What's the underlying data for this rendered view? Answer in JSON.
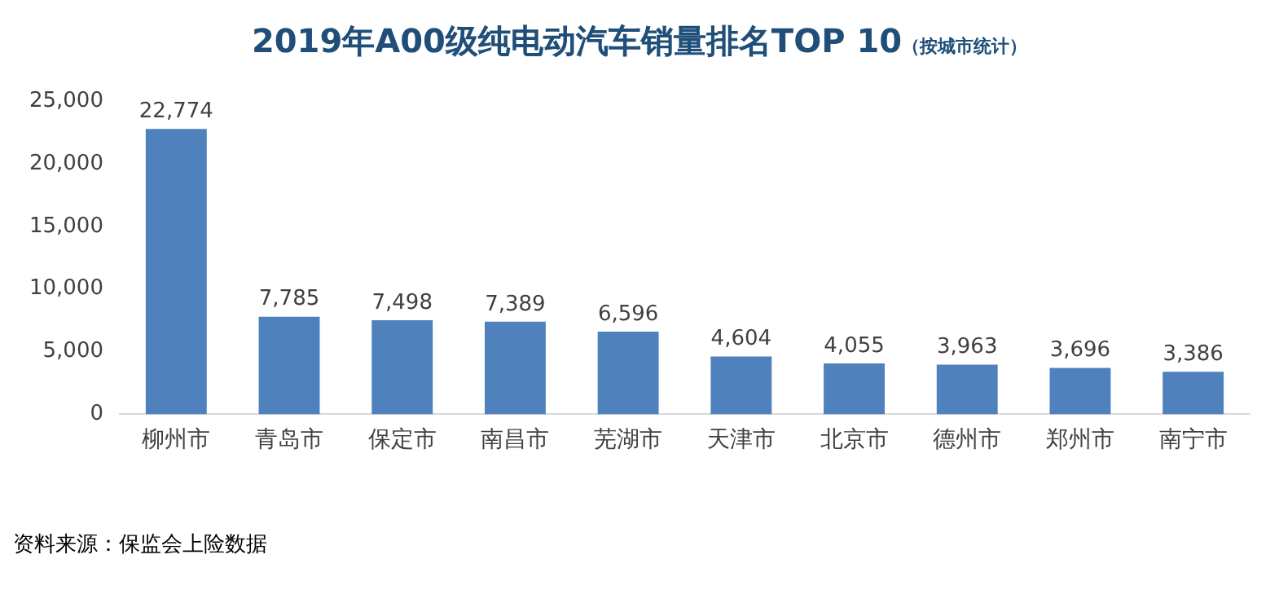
{
  "chart_data": {
    "type": "bar",
    "title": "2019年A00级纯电动汽车销量排名TOP 10",
    "subtitle": "（按城市统计）",
    "categories": [
      "柳州市",
      "青岛市",
      "保定市",
      "南昌市",
      "芜湖市",
      "天津市",
      "北京市",
      "德州市",
      "郑州市",
      "南宁市"
    ],
    "values": [
      22774,
      7785,
      7498,
      7389,
      6596,
      4604,
      4055,
      3963,
      3696,
      3386
    ],
    "value_labels": [
      "22,774",
      "7,785",
      "7,498",
      "7,389",
      "6,596",
      "4,604",
      "4,055",
      "3,963",
      "3,696",
      "3,386"
    ],
    "color": "#4f81bd",
    "ylim": [
      0,
      25000
    ],
    "yticks": [
      {
        "value": 0,
        "label": "0"
      },
      {
        "value": 5000,
        "label": "5,000"
      },
      {
        "value": 10000,
        "label": "10,000"
      },
      {
        "value": 15000,
        "label": "15,000"
      },
      {
        "value": 20000,
        "label": "20,000"
      },
      {
        "value": 25000,
        "label": "25,000"
      }
    ],
    "grid": false,
    "legend": false,
    "annotations": [
      "资料来源：保监会上险数据"
    ]
  }
}
